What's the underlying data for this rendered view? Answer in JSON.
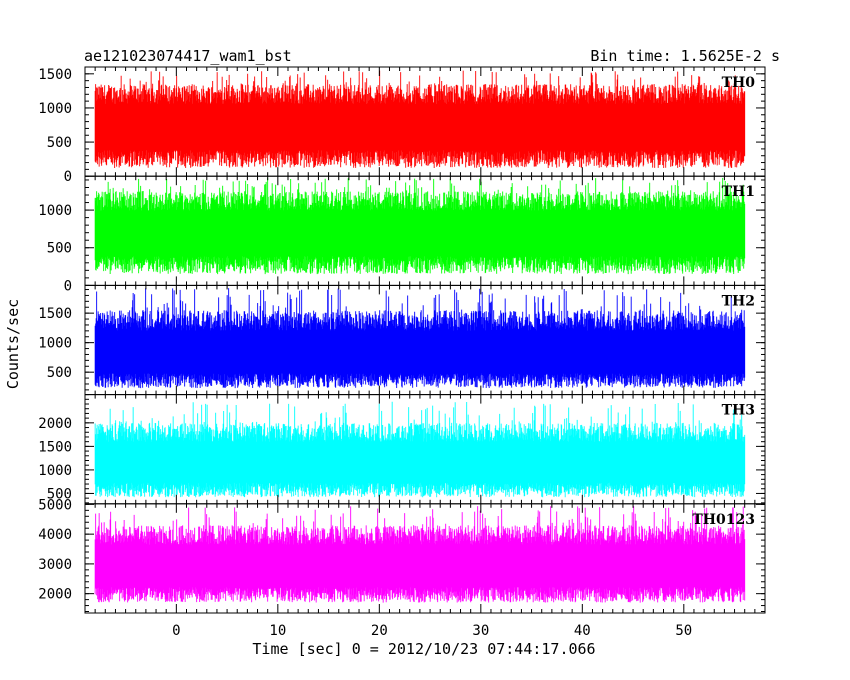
{
  "header": {
    "title": "ae121023074417_wam1_bst",
    "bin_time": "Bin time: 1.5625E-2 s"
  },
  "chart_data": {
    "type": "line",
    "xlabel": "Time [sec] 0 = 2012/10/23 07:44:17.066",
    "ylabel": "Counts/sec",
    "xlim": [
      -9,
      58
    ],
    "x_ticks": [
      0,
      10,
      20,
      30,
      40,
      50
    ],
    "data_x_range": [
      -8,
      56
    ],
    "grid": false,
    "panels": [
      {
        "name": "TH0",
        "color": "#ff0000",
        "ylim": [
          0,
          1600
        ],
        "y_ticks": [
          0,
          500,
          1000,
          1500
        ],
        "baseline": 700,
        "low": 120,
        "high": 1350,
        "peak": 1550
      },
      {
        "name": "TH1",
        "color": "#00ff00",
        "ylim": [
          0,
          1450
        ],
        "y_ticks": [
          0,
          500,
          1000
        ],
        "baseline": 680,
        "low": 150,
        "high": 1250,
        "peak": 1430
      },
      {
        "name": "TH2",
        "color": "#0000ff",
        "ylim": [
          120,
          1970
        ],
        "y_ticks": [
          500,
          1000,
          1500
        ],
        "baseline": 780,
        "low": 230,
        "high": 1550,
        "peak": 1930
      },
      {
        "name": "TH3",
        "color": "#00ffff",
        "ylim": [
          280,
          2600
        ],
        "y_ticks": [
          500,
          1000,
          1500,
          2000
        ],
        "baseline": 1100,
        "low": 420,
        "high": 2000,
        "peak": 2450
      },
      {
        "name": "TH0123",
        "color": "#ff00ff",
        "ylim": [
          1350,
          5020
        ],
        "y_ticks": [
          2000,
          3000,
          4000,
          5000
        ],
        "baseline": 2850,
        "low": 1700,
        "high": 4300,
        "peak": 4950
      }
    ]
  }
}
